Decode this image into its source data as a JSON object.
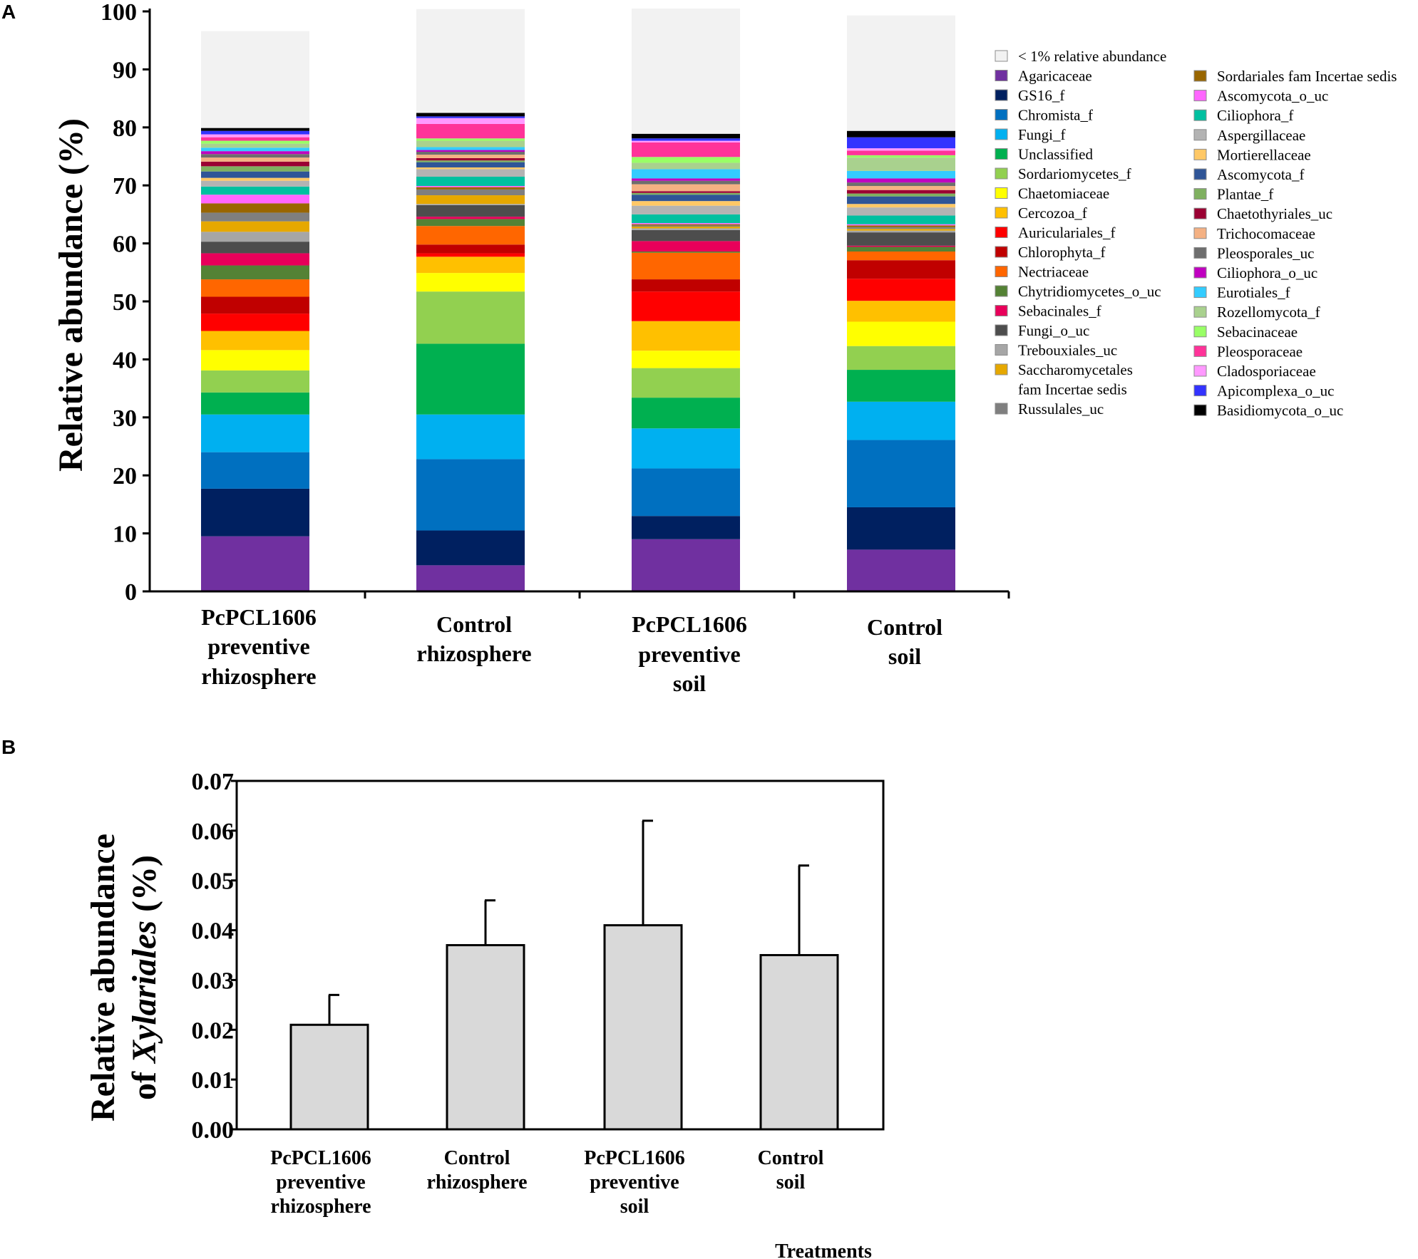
{
  "chart_data": [
    {
      "panel": "A",
      "type": "bar",
      "stacked": true,
      "ylabel": "Relative abundance (%)",
      "xlabel": "",
      "ylim": [
        0,
        100
      ],
      "yticks": [
        "0",
        "10",
        "20",
        "30",
        "40",
        "50",
        "60",
        "70",
        "80",
        "90",
        "100"
      ],
      "categories": [
        [
          "PcPCL1606",
          "preventive",
          "rhizosphere"
        ],
        [
          "Control",
          "rhizosphere"
        ],
        [
          "PcPCL1606",
          "preventive",
          "soil"
        ],
        [
          "Control",
          "soil"
        ]
      ],
      "series": [
        {
          "name": "Agaricaceae",
          "color": "#7030a0",
          "values": [
            9.5,
            4.5,
            9.0,
            7.2
          ]
        },
        {
          "name": "GS16_f",
          "color": "#002060",
          "values": [
            8.2,
            6.0,
            4.0,
            7.3
          ]
        },
        {
          "name": "Chromista_f",
          "color": "#0070c0",
          "values": [
            6.3,
            12.3,
            8.2,
            11.6
          ]
        },
        {
          "name": "Fungi_f",
          "color": "#00b0f0",
          "values": [
            6.5,
            7.7,
            6.9,
            6.6
          ]
        },
        {
          "name": "Unclassified",
          "color": "#00b050",
          "values": [
            3.8,
            12.2,
            5.3,
            5.5
          ]
        },
        {
          "name": "Sordariomycetes_f",
          "color": "#92d050",
          "values": [
            3.8,
            9.0,
            5.1,
            4.1
          ]
        },
        {
          "name": "Chaetomiaceae",
          "color": "#ffff00",
          "values": [
            3.5,
            3.2,
            3.0,
            4.2
          ]
        },
        {
          "name": "Cercozoa_f",
          "color": "#ffc000",
          "values": [
            3.3,
            2.8,
            5.1,
            3.6
          ]
        },
        {
          "name": "Auriculariales_f",
          "color": "#ff0000",
          "values": [
            3.0,
            0.6,
            5.1,
            3.8
          ]
        },
        {
          "name": "Chlorophyta_f",
          "color": "#c00000",
          "values": [
            2.9,
            1.5,
            2.1,
            3.2
          ]
        },
        {
          "name": "Nectriaceae",
          "color": "#ff6600",
          "values": [
            3.0,
            3.2,
            4.6,
            1.5
          ]
        },
        {
          "name": "Chytridiomycetes_o_uc",
          "color": "#548235",
          "values": [
            2.4,
            1.2,
            0.2,
            0.8
          ]
        },
        {
          "name": "Sebacinales_f",
          "color": "#e8005a",
          "values": [
            2.1,
            0.4,
            1.8,
            0.2
          ]
        },
        {
          "name": "Fungi_o_uc",
          "color": "#4d4d4d",
          "values": [
            2.0,
            2.0,
            1.9,
            2.3
          ]
        },
        {
          "name": "Trebouxiales_uc",
          "color": "#a6a6a6",
          "values": [
            1.7,
            0.2,
            0.3,
            0.3
          ]
        },
        {
          "name": "Saccharomycetales fam Incertae sedis",
          "color": "#e6a800",
          "values": [
            1.8,
            1.5,
            0.3,
            0.3
          ]
        },
        {
          "name": "Russulales_uc",
          "color": "#7f7f7f",
          "values": [
            1.5,
            1.0,
            0.2,
            0.3
          ]
        },
        {
          "name": "Sordariales fam Incertae sedis",
          "color": "#996600",
          "values": [
            1.6,
            0.4,
            0.2,
            0.3
          ]
        },
        {
          "name": "Ascomycota_o_uc",
          "color": "#ff66ff",
          "values": [
            1.5,
            0.2,
            0.2,
            0.2
          ]
        },
        {
          "name": "Ciliophora_f",
          "color": "#00c0a0",
          "values": [
            1.4,
            1.6,
            1.5,
            1.5
          ]
        },
        {
          "name": "Aspergillaceae",
          "color": "#b3b3b3",
          "values": [
            1.0,
            1.3,
            1.5,
            1.4
          ]
        },
        {
          "name": "Mortierellaceae",
          "color": "#ffc866",
          "values": [
            0.5,
            0.3,
            0.8,
            0.6
          ]
        },
        {
          "name": "Ascomycota_f",
          "color": "#2f5597",
          "values": [
            1.1,
            0.9,
            1.1,
            1.3
          ]
        },
        {
          "name": "Plantae_f",
          "color": "#7fb060",
          "values": [
            0.9,
            0.3,
            0.3,
            0.5
          ]
        },
        {
          "name": "Chaetothyriales_uc",
          "color": "#9b0033",
          "values": [
            0.8,
            0.4,
            0.3,
            0.6
          ]
        },
        {
          "name": "Trichocomaceae",
          "color": "#f4b183",
          "values": [
            0.7,
            0.6,
            1.2,
            0.7
          ]
        },
        {
          "name": "Pleosporales_uc",
          "color": "#6e6e6e",
          "values": [
            0.6,
            0.5,
            0.6,
            0.6
          ]
        },
        {
          "name": "Ciliophora_o_uc",
          "color": "#c000c0",
          "values": [
            0.5,
            0.3,
            0.4,
            0.7
          ]
        },
        {
          "name": "Eurotiales_f",
          "color": "#33ccff",
          "values": [
            0.6,
            0.5,
            1.6,
            1.3
          ]
        },
        {
          "name": "Rozellomycota_f",
          "color": "#a9d18e",
          "values": [
            0.7,
            1.1,
            1.1,
            2.3
          ]
        },
        {
          "name": "Sebacinaceae",
          "color": "#99ff66",
          "values": [
            0.5,
            0.4,
            1.0,
            0.4
          ]
        },
        {
          "name": "Pleosporaceae",
          "color": "#ff3399",
          "values": [
            0.6,
            2.5,
            2.5,
            0.8
          ]
        },
        {
          "name": "Cladosporiaceae",
          "color": "#ff99ff",
          "values": [
            0.5,
            1.0,
            0.3,
            0.4
          ]
        },
        {
          "name": "Apicomplexa_o_uc",
          "color": "#3333ff",
          "values": [
            0.6,
            0.3,
            0.4,
            1.9
          ]
        },
        {
          "name": "Basidiomycota_o_uc",
          "color": "#000000",
          "values": [
            0.5,
            0.6,
            0.8,
            1.1
          ]
        }
      ],
      "remainder": {
        "name": "< 1% relative abundance",
        "color": "#f2f2f2",
        "values": [
          16.7,
          17.9,
          21.6,
          19.9
        ]
      }
    },
    {
      "panel": "B",
      "type": "bar",
      "ylabel_line1": "Relative abundance",
      "ylabel_line2_prefix": "of ",
      "ylabel_line2_italic": "Xylariales",
      "ylabel_line2_suffix": " (%)",
      "xlabel": "Treatments",
      "ylim": [
        0,
        0.07
      ],
      "yticks": [
        "0.00",
        "0.01",
        "0.02",
        "0.03",
        "0.04",
        "0.05",
        "0.06",
        "0.07"
      ],
      "categories": [
        [
          "PcPCL1606",
          "preventive",
          "rhizosphere"
        ],
        [
          "Control",
          "rhizosphere"
        ],
        [
          "PcPCL1606",
          "preventive",
          "soil"
        ],
        [
          "Control",
          "soil"
        ]
      ],
      "values": [
        0.021,
        0.037,
        0.041,
        0.035
      ],
      "errors": [
        0.006,
        0.009,
        0.021,
        0.018
      ],
      "bar_color": "#d9d9d9"
    }
  ]
}
